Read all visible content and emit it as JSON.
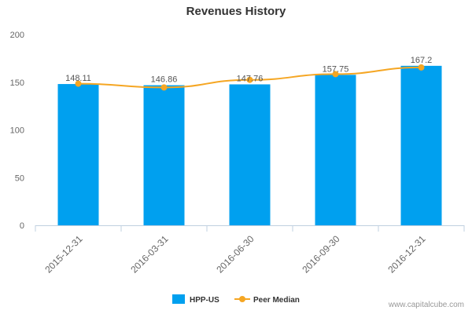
{
  "credit": "www.capitalcube.com",
  "colors": {
    "bar": "#00a0ef",
    "line": "#f5a623",
    "axis": "#c0d0e0",
    "tick_text": "#666666",
    "label_text": "#555555"
  },
  "chart_data": {
    "type": "bar",
    "title": "Revenues History",
    "xlabel": "",
    "ylabel": "",
    "categories": [
      "2015-12-31",
      "2016-03-31",
      "2016-06-30",
      "2016-09-30",
      "2016-12-31"
    ],
    "series": [
      {
        "name": "HPP-US",
        "type": "bar",
        "values": [
          148.11,
          146.86,
          147.76,
          157.75,
          167.2
        ],
        "labels": [
          "148.11",
          "146.86",
          "147.76",
          "157.75",
          "167.2"
        ]
      },
      {
        "name": "Peer Median",
        "type": "line",
        "values": [
          148.5,
          144.5,
          152.5,
          158.5,
          165.5
        ]
      }
    ],
    "ylim": [
      0,
      200
    ],
    "yticks": [
      0,
      50,
      100,
      150,
      200
    ],
    "grid": false,
    "legend": "bottom-center"
  }
}
